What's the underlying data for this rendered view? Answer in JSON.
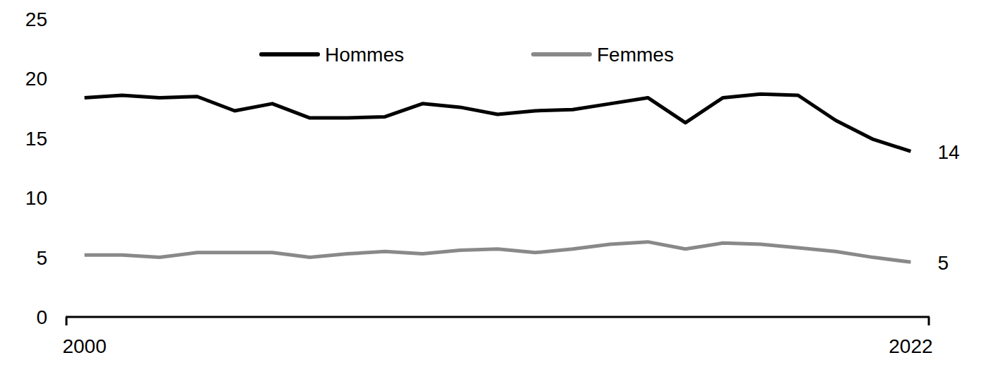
{
  "chart_data": {
    "type": "line",
    "categories": [
      "2000",
      null,
      null,
      null,
      null,
      null,
      null,
      null,
      null,
      null,
      null,
      null,
      null,
      null,
      null,
      null,
      null,
      null,
      null,
      null,
      null,
      null,
      "2022"
    ],
    "series": [
      {
        "name": "Hommes",
        "color": "#000000",
        "values": [
          18.4,
          18.6,
          18.4,
          18.5,
          17.3,
          17.9,
          16.7,
          16.7,
          16.8,
          17.9,
          17.6,
          17.0,
          17.3,
          17.4,
          17.9,
          18.4,
          16.3,
          18.4,
          18.7,
          18.6,
          16.5,
          14.9,
          13.9
        ],
        "value_labels": [
          null,
          null,
          null,
          null,
          null,
          null,
          null,
          null,
          null,
          null,
          null,
          null,
          null,
          null,
          null,
          null,
          null,
          null,
          null,
          null,
          null,
          null,
          "14"
        ]
      },
      {
        "name": "Femmes",
        "color": "#898989",
        "values": [
          5.2,
          5.2,
          5.0,
          5.4,
          5.4,
          5.4,
          5.0,
          5.3,
          5.5,
          5.3,
          5.6,
          5.7,
          5.4,
          5.7,
          6.1,
          6.3,
          5.7,
          6.2,
          6.1,
          5.8,
          5.5,
          5.0,
          4.6
        ],
        "value_labels": [
          null,
          null,
          null,
          null,
          null,
          null,
          null,
          null,
          null,
          null,
          null,
          null,
          null,
          null,
          null,
          null,
          null,
          null,
          null,
          null,
          null,
          null,
          "5"
        ]
      }
    ],
    "ylim": [
      0,
      25
    ],
    "yticks": [
      0,
      5,
      10,
      15,
      20,
      25
    ],
    "grid": false,
    "legend": "top"
  }
}
